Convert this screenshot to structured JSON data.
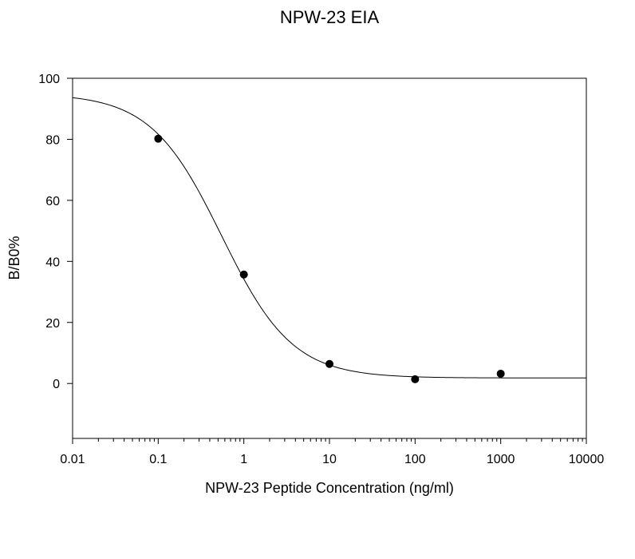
{
  "chart_data": {
    "type": "scatter",
    "title": "NPW-23 EIA",
    "xlabel": "NPW-23 Peptide Concentration (ng/ml)",
    "ylabel": "B/B0%",
    "x_scale": "log",
    "xlim": [
      0.01,
      10000
    ],
    "ylim": [
      -18,
      100
    ],
    "x_ticks": [
      0.01,
      0.1,
      1,
      10,
      100,
      1000,
      10000
    ],
    "x_tick_labels": [
      "0.01",
      "0.1",
      "1",
      "10",
      "100",
      "1000",
      "10000"
    ],
    "y_ticks": [
      0,
      20,
      40,
      60,
      80,
      100
    ],
    "y_tick_labels": [
      "0",
      "20",
      "40",
      "60",
      "80",
      "100"
    ],
    "grid": false,
    "series": [
      {
        "x": [
          0.1,
          1,
          10,
          100,
          1000
        ],
        "y": [
          80.2,
          35.7,
          6.4,
          1.4,
          3.2
        ],
        "color": "#000000"
      }
    ],
    "fit": {
      "model": "four-parameter logistic",
      "top": 95,
      "bottom": 1.8,
      "ec50": 0.55,
      "hill": 1.05,
      "color": "#000000"
    }
  }
}
